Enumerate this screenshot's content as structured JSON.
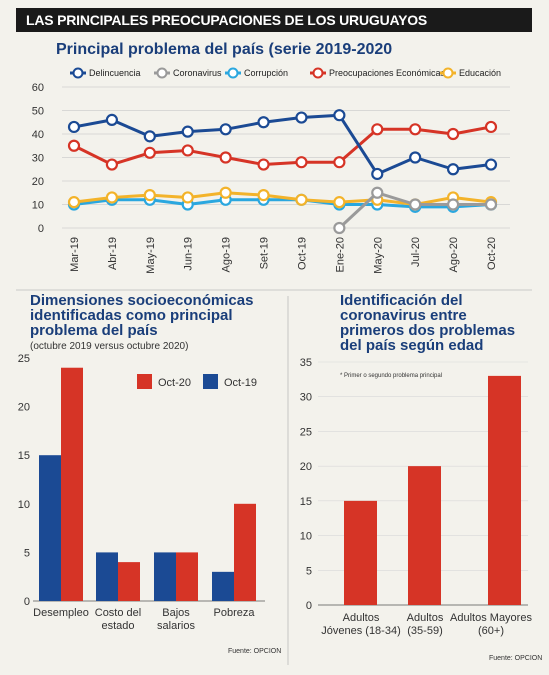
{
  "header": {
    "title": "LAS PRINCIPALES PREOCUPACIONES DE LOS URUGUAYOS"
  },
  "colors": {
    "delincuencia": "#1b4a94",
    "coronavirus": "#9a9a9a",
    "corrupcion": "#2aa7df",
    "economicas": "#d63426",
    "educacion": "#f3b32a",
    "oct20": "#d63426",
    "oct19": "#1b4a94"
  },
  "chart_data": [
    {
      "type": "line",
      "title": "Principal problema del país (serie 2019-2020",
      "x": [
        "Mar-19",
        "Abr-19",
        "May-19",
        "Jun-19",
        "Ago-19",
        "Set-19",
        "Oct-19",
        "Ene-20",
        "May-20",
        "Jul-20",
        "Ago-20",
        "Oct-20"
      ],
      "ylim": [
        0,
        60
      ],
      "yticks": [
        0,
        10,
        20,
        30,
        40,
        50,
        60
      ],
      "grid": true,
      "legend": "top",
      "series": [
        {
          "name": "Delincuencia",
          "values": [
            43,
            46,
            39,
            41,
            42,
            45,
            47,
            48,
            23,
            30,
            25,
            27
          ]
        },
        {
          "name": "Coronavirus",
          "values": [
            null,
            null,
            null,
            null,
            null,
            null,
            null,
            0,
            15,
            10,
            10,
            10
          ]
        },
        {
          "name": "Corrupción",
          "values": [
            10,
            12,
            12,
            10,
            12,
            12,
            12,
            10,
            10,
            9,
            9,
            10
          ]
        },
        {
          "name": "Preocupaciones Económicas",
          "values": [
            35,
            27,
            32,
            33,
            30,
            27,
            28,
            28,
            42,
            42,
            40,
            43
          ]
        },
        {
          "name": "Educación",
          "values": [
            11,
            13,
            14,
            13,
            15,
            14,
            12,
            11,
            12,
            10,
            13,
            11
          ]
        }
      ]
    },
    {
      "type": "bar",
      "title": "Dimensiones socioeconómicas identificadas como principal problema del país",
      "subtitle": "(octubre 2019 versus octubre 2020)",
      "categories": [
        "Desempleo",
        "Costo del estado",
        "Bajos salarios",
        "Pobreza"
      ],
      "ylim": [
        0,
        25
      ],
      "yticks": [
        0,
        5,
        10,
        15,
        20,
        25
      ],
      "legend": "top-right",
      "series": [
        {
          "name": "Oct-19",
          "values": [
            15,
            5,
            5,
            3
          ]
        },
        {
          "name": "Oct-20",
          "values": [
            24,
            4,
            5,
            10
          ]
        }
      ],
      "source": "Fuente: OPCION"
    },
    {
      "type": "bar",
      "title": "Identificación del coronavirus entre primeros dos problemas del país según edad",
      "note": "* Primer o segundo problema principal",
      "categories": [
        "Adultos Jóvenes (18-34)",
        "Adultos (35-59)",
        "Adultos Mayores (60+)"
      ],
      "ylim": [
        0,
        35
      ],
      "yticks": [
        0,
        5,
        10,
        15,
        20,
        25,
        30,
        35
      ],
      "values": [
        15,
        20,
        33
      ],
      "source": "Fuente: OPCION"
    }
  ]
}
